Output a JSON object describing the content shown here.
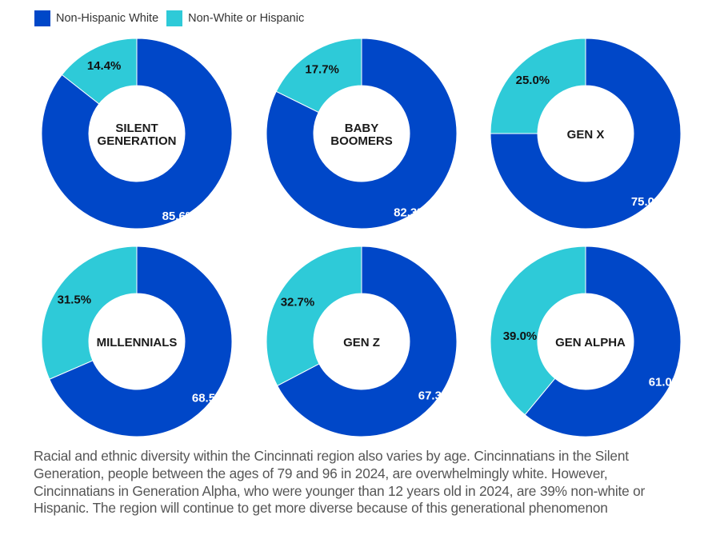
{
  "colors": {
    "non_hispanic_white": "#0047c8",
    "non_white_or_hispanic": "#2ecad8"
  },
  "legend": [
    {
      "label": "Non-Hispanic White",
      "key": "non_hispanic_white"
    },
    {
      "label": "Non-White or Hispanic",
      "key": "non_white_or_hispanic"
    }
  ],
  "chart_data": [
    {
      "type": "pie",
      "title": [
        "SILENT",
        "GENERATION"
      ],
      "slices": [
        {
          "label": "Non-Hispanic White",
          "value": 85.6,
          "text": "85.6%"
        },
        {
          "label": "Non-White or Hispanic",
          "value": 14.4,
          "text": "14.4%"
        }
      ]
    },
    {
      "type": "pie",
      "title": [
        "BABY",
        "BOOMERS"
      ],
      "slices": [
        {
          "label": "Non-Hispanic White",
          "value": 82.3,
          "text": "82.3%"
        },
        {
          "label": "Non-White or Hispanic",
          "value": 17.7,
          "text": "17.7%"
        }
      ]
    },
    {
      "type": "pie",
      "title": [
        "GEN X"
      ],
      "slices": [
        {
          "label": "Non-Hispanic White",
          "value": 75.0,
          "text": "75.0%"
        },
        {
          "label": "Non-White or Hispanic",
          "value": 25.0,
          "text": "25.0%"
        }
      ]
    },
    {
      "type": "pie",
      "title": [
        "MILLENNIALS"
      ],
      "slices": [
        {
          "label": "Non-Hispanic White",
          "value": 68.5,
          "text": "68.5%"
        },
        {
          "label": "Non-White or Hispanic",
          "value": 31.5,
          "text": "31.5%"
        }
      ]
    },
    {
      "type": "pie",
      "title": [
        "GEN Z"
      ],
      "slices": [
        {
          "label": "Non-Hispanic White",
          "value": 67.3,
          "text": "67.3%"
        },
        {
          "label": "Non-White or Hispanic",
          "value": 32.7,
          "text": "32.7%"
        }
      ]
    },
    {
      "type": "pie",
      "title": [
        "GEN ALPHA"
      ],
      "slices": [
        {
          "label": "Non-Hispanic White",
          "value": 61.0,
          "text": "61.0%"
        },
        {
          "label": "Non-White or Hispanic",
          "value": 39.0,
          "text": "39.0%"
        }
      ]
    }
  ],
  "caption": "Racial and ethnic diversity within the Cincinnati region also varies by age. Cincinnatians in the Silent Generation, people between the ages of 79 and 96 in 2024, are overwhelmingly white. However, Cincinnatians in Generation Alpha, who were younger than 12 years old in 2024, are 39% non-white or Hispanic. The region will continue to get more diverse because of this generational phenomenon"
}
